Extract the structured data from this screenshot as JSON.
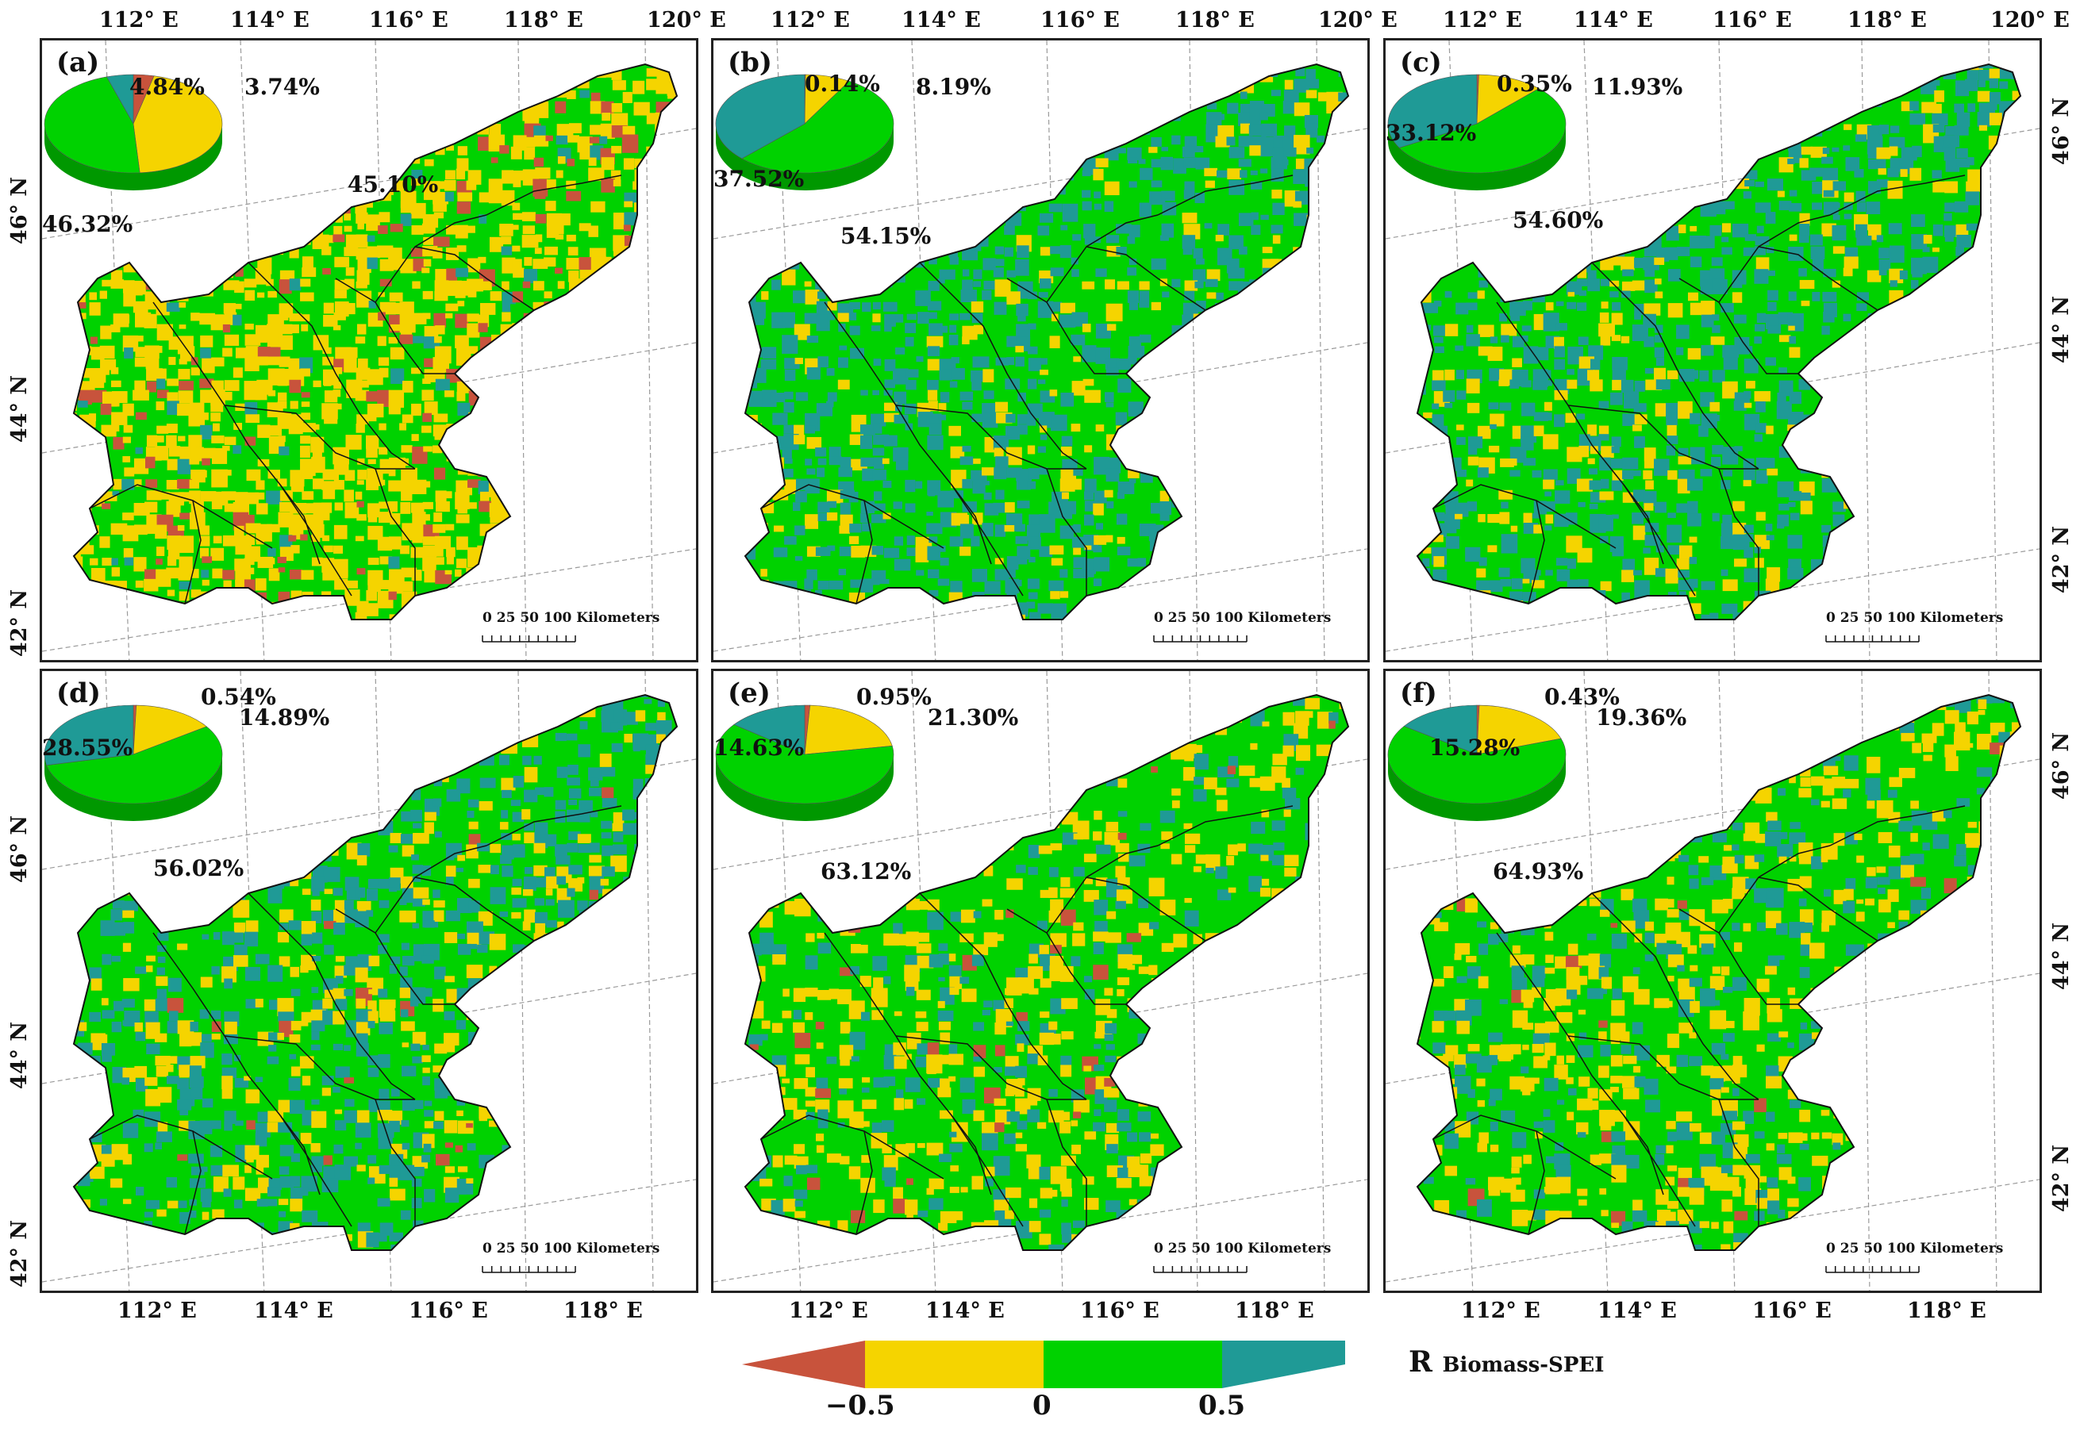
{
  "figure": {
    "panels": [
      {
        "label": "(a)",
        "pie": [
          {
            "category": "< -0.5",
            "percent": 3.74,
            "text": "3.74%"
          },
          {
            "category": "-0.5 to 0",
            "percent": 45.1,
            "text": "45.10%"
          },
          {
            "category": "0 to 0.5",
            "percent": 46.32,
            "text": "46.32%"
          },
          {
            "category": "> 0.5",
            "percent": 4.84,
            "text": "4.84%"
          }
        ]
      },
      {
        "label": "(b)",
        "pie": [
          {
            "category": "< -0.5",
            "percent": 0.14,
            "text": "0.14%"
          },
          {
            "category": "-0.5 to 0",
            "percent": 8.19,
            "text": "8.19%"
          },
          {
            "category": "0 to 0.5",
            "percent": 54.15,
            "text": "54.15%"
          },
          {
            "category": "> 0.5",
            "percent": 37.52,
            "text": "37.52%"
          }
        ]
      },
      {
        "label": "(c)",
        "pie": [
          {
            "category": "< -0.5",
            "percent": 0.35,
            "text": "0.35%"
          },
          {
            "category": "-0.5 to 0",
            "percent": 11.93,
            "text": "11.93%"
          },
          {
            "category": "0 to 0.5",
            "percent": 54.6,
            "text": "54.60%"
          },
          {
            "category": "> 0.5",
            "percent": 33.12,
            "text": "33.12%"
          }
        ]
      },
      {
        "label": "(d)",
        "pie": [
          {
            "category": "< -0.5",
            "percent": 0.54,
            "text": "0.54%"
          },
          {
            "category": "-0.5 to 0",
            "percent": 14.89,
            "text": "14.89%"
          },
          {
            "category": "0 to 0.5",
            "percent": 56.02,
            "text": "56.02%"
          },
          {
            "category": "> 0.5",
            "percent": 28.55,
            "text": "28.55%"
          }
        ]
      },
      {
        "label": "(e)",
        "pie": [
          {
            "category": "< -0.5",
            "percent": 0.95,
            "text": "0.95%"
          },
          {
            "category": "-0.5 to 0",
            "percent": 21.3,
            "text": "21.30%"
          },
          {
            "category": "0 to 0.5",
            "percent": 63.12,
            "text": "63.12%"
          },
          {
            "category": "> 0.5",
            "percent": 14.63,
            "text": "14.63%"
          }
        ]
      },
      {
        "label": "(f)",
        "pie": [
          {
            "category": "< -0.5",
            "percent": 0.43,
            "text": "0.43%"
          },
          {
            "category": "-0.5 to 0",
            "percent": 19.36,
            "text": "19.36%"
          },
          {
            "category": "0 to 0.5",
            "percent": 64.93,
            "text": "64.93%"
          },
          {
            "category": "> 0.5",
            "percent": 15.28,
            "text": "15.28%"
          }
        ]
      }
    ],
    "top_lon_ticks": [
      "112° E",
      "114° E",
      "116° E",
      "118° E",
      "120° E"
    ],
    "bottom_lon_ticks": [
      "112° E",
      "114° E",
      "116° E",
      "118° E"
    ],
    "lat_ticks": [
      "46° N",
      "44° N",
      "42° N"
    ],
    "scale_bar": {
      "labels": "0  25 50      100 Kilometers"
    },
    "legend": {
      "title_main": "R",
      "title_sub": "Biomass-SPEI",
      "ticks": [
        "−0.5",
        "0",
        "0.5"
      ],
      "colors": [
        "#c8533c",
        "#f5d400",
        "#00d200",
        "#1f9a96"
      ]
    }
  },
  "chart_data": [
    {
      "type": "pie",
      "title": "(a)",
      "categories": [
        "< -0.5",
        "-0.5–0",
        "0–0.5",
        "> 0.5"
      ],
      "values": [
        3.74,
        45.1,
        46.32,
        4.84
      ]
    },
    {
      "type": "pie",
      "title": "(b)",
      "categories": [
        "< -0.5",
        "-0.5–0",
        "0–0.5",
        "> 0.5"
      ],
      "values": [
        0.14,
        8.19,
        54.15,
        37.52
      ]
    },
    {
      "type": "pie",
      "title": "(c)",
      "categories": [
        "< -0.5",
        "-0.5–0",
        "0–0.5",
        "> 0.5"
      ],
      "values": [
        0.35,
        11.93,
        54.6,
        33.12
      ]
    },
    {
      "type": "pie",
      "title": "(d)",
      "categories": [
        "< -0.5",
        "-0.5–0",
        "0–0.5",
        "> 0.5"
      ],
      "values": [
        0.54,
        14.89,
        56.02,
        28.55
      ]
    },
    {
      "type": "pie",
      "title": "(e)",
      "categories": [
        "< -0.5",
        "-0.5–0",
        "0–0.5",
        "> 0.5"
      ],
      "values": [
        0.95,
        21.3,
        63.12,
        14.63
      ]
    },
    {
      "type": "pie",
      "title": "(f)",
      "categories": [
        "< -0.5",
        "-0.5–0",
        "0–0.5",
        "> 0.5"
      ],
      "values": [
        0.43,
        19.36,
        64.93,
        15.28
      ]
    }
  ]
}
